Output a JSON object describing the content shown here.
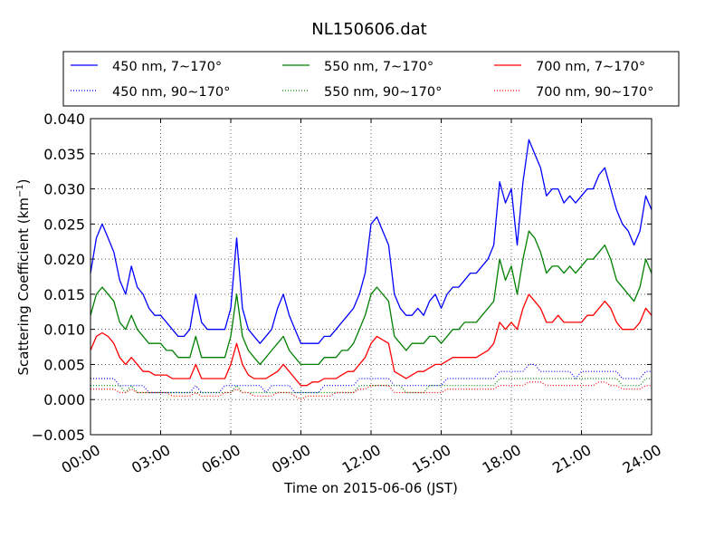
{
  "chart_data": {
    "type": "line",
    "title": "NL150606.dat",
    "xlabel": "Time on 2015-06-06 (JST)",
    "ylabel_prefix": "Scattering Coefficient (km",
    "ylabel_sup": "−1",
    "ylabel_suffix": ")",
    "xlim": [
      0,
      24
    ],
    "ylim": [
      -0.005,
      0.04
    ],
    "x_ticks": [
      {
        "v": 0,
        "label": "00:00"
      },
      {
        "v": 3,
        "label": "03:00"
      },
      {
        "v": 6,
        "label": "06:00"
      },
      {
        "v": 9,
        "label": "09:00"
      },
      {
        "v": 12,
        "label": "12:00"
      },
      {
        "v": 15,
        "label": "15:00"
      },
      {
        "v": 18,
        "label": "18:00"
      },
      {
        "v": 21,
        "label": "21:00"
      },
      {
        "v": 24,
        "label": "24:00"
      }
    ],
    "y_ticks": [
      {
        "v": -0.005,
        "label": "−0.005"
      },
      {
        "v": 0.0,
        "label": "0.000"
      },
      {
        "v": 0.005,
        "label": "0.005"
      },
      {
        "v": 0.01,
        "label": "0.010"
      },
      {
        "v": 0.015,
        "label": "0.015"
      },
      {
        "v": 0.02,
        "label": "0.020"
      },
      {
        "v": 0.025,
        "label": "0.025"
      },
      {
        "v": 0.03,
        "label": "0.030"
      },
      {
        "v": 0.035,
        "label": "0.035"
      },
      {
        "v": 0.04,
        "label": "0.040"
      }
    ],
    "grid": true,
    "legend_position": "top",
    "x": [
      0.0,
      0.25,
      0.5,
      0.75,
      1.0,
      1.25,
      1.5,
      1.75,
      2.0,
      2.25,
      2.5,
      2.75,
      3.0,
      3.25,
      3.5,
      3.75,
      4.0,
      4.25,
      4.5,
      4.75,
      5.0,
      5.25,
      5.5,
      5.75,
      6.0,
      6.25,
      6.5,
      6.75,
      7.0,
      7.25,
      7.5,
      7.75,
      8.0,
      8.25,
      8.5,
      8.75,
      9.0,
      9.25,
      9.5,
      9.75,
      10.0,
      10.25,
      10.5,
      10.75,
      11.0,
      11.25,
      11.5,
      11.75,
      12.0,
      12.25,
      12.5,
      12.75,
      13.0,
      13.25,
      13.5,
      13.75,
      14.0,
      14.25,
      14.5,
      14.75,
      15.0,
      15.25,
      15.5,
      15.75,
      16.0,
      16.25,
      16.5,
      16.75,
      17.0,
      17.25,
      17.5,
      17.75,
      18.0,
      18.25,
      18.5,
      18.75,
      19.0,
      19.25,
      19.5,
      19.75,
      20.0,
      20.25,
      20.5,
      20.75,
      21.0,
      21.25,
      21.5,
      21.75,
      22.0,
      22.25,
      22.5,
      22.75,
      23.0,
      23.25,
      23.5,
      23.75,
      24.0
    ],
    "series": [
      {
        "name": "450 nm, 7∼170°",
        "color": "#0000ff",
        "style": "solid",
        "values": [
          0.018,
          0.023,
          0.025,
          0.023,
          0.021,
          0.017,
          0.015,
          0.019,
          0.016,
          0.015,
          0.013,
          0.012,
          0.012,
          0.011,
          0.01,
          0.009,
          0.009,
          0.01,
          0.015,
          0.011,
          0.01,
          0.01,
          0.01,
          0.01,
          0.013,
          0.023,
          0.013,
          0.01,
          0.009,
          0.008,
          0.009,
          0.01,
          0.013,
          0.015,
          0.012,
          0.01,
          0.008,
          0.008,
          0.008,
          0.008,
          0.009,
          0.009,
          0.01,
          0.011,
          0.012,
          0.013,
          0.015,
          0.018,
          0.025,
          0.026,
          0.024,
          0.022,
          0.015,
          0.013,
          0.012,
          0.012,
          0.013,
          0.012,
          0.014,
          0.015,
          0.013,
          0.015,
          0.016,
          0.016,
          0.017,
          0.018,
          0.018,
          0.019,
          0.02,
          0.022,
          0.031,
          0.028,
          0.03,
          0.022,
          0.031,
          0.037,
          0.035,
          0.033,
          0.029,
          0.03,
          0.03,
          0.028,
          0.029,
          0.028,
          0.029,
          0.03,
          0.03,
          0.032,
          0.033,
          0.03,
          0.027,
          0.025,
          0.024,
          0.022,
          0.024,
          0.029,
          0.027
        ]
      },
      {
        "name": "450 nm, 90∼170°",
        "color": "#0000ff",
        "style": "dotted",
        "values": [
          0.003,
          0.003,
          0.003,
          0.003,
          0.003,
          0.002,
          0.002,
          0.002,
          0.002,
          0.002,
          0.001,
          0.001,
          0.001,
          0.001,
          0.001,
          0.001,
          0.001,
          0.001,
          0.002,
          0.001,
          0.001,
          0.001,
          0.001,
          0.002,
          0.002,
          0.002,
          0.002,
          0.002,
          0.002,
          0.002,
          0.001,
          0.002,
          0.002,
          0.002,
          0.002,
          0.001,
          0.001,
          0.001,
          0.001,
          0.001,
          0.002,
          0.002,
          0.002,
          0.002,
          0.002,
          0.002,
          0.003,
          0.003,
          0.003,
          0.003,
          0.003,
          0.003,
          0.002,
          0.002,
          0.002,
          0.002,
          0.002,
          0.002,
          0.002,
          0.002,
          0.002,
          0.003,
          0.003,
          0.003,
          0.003,
          0.003,
          0.003,
          0.003,
          0.003,
          0.003,
          0.004,
          0.004,
          0.004,
          0.004,
          0.004,
          0.005,
          0.005,
          0.004,
          0.004,
          0.004,
          0.004,
          0.004,
          0.004,
          0.003,
          0.004,
          0.004,
          0.004,
          0.004,
          0.004,
          0.004,
          0.004,
          0.003,
          0.003,
          0.003,
          0.003,
          0.004,
          0.004
        ]
      },
      {
        "name": "550 nm, 7∼170°",
        "color": "#008000",
        "style": "solid",
        "values": [
          0.012,
          0.015,
          0.016,
          0.015,
          0.014,
          0.011,
          0.01,
          0.012,
          0.01,
          0.009,
          0.008,
          0.008,
          0.008,
          0.007,
          0.007,
          0.006,
          0.006,
          0.006,
          0.009,
          0.006,
          0.006,
          0.006,
          0.006,
          0.006,
          0.009,
          0.015,
          0.009,
          0.007,
          0.006,
          0.005,
          0.006,
          0.007,
          0.008,
          0.009,
          0.007,
          0.006,
          0.005,
          0.005,
          0.005,
          0.005,
          0.006,
          0.006,
          0.006,
          0.007,
          0.007,
          0.008,
          0.01,
          0.012,
          0.015,
          0.016,
          0.015,
          0.014,
          0.009,
          0.008,
          0.007,
          0.008,
          0.008,
          0.008,
          0.009,
          0.009,
          0.008,
          0.009,
          0.01,
          0.01,
          0.011,
          0.011,
          0.011,
          0.012,
          0.013,
          0.014,
          0.02,
          0.017,
          0.019,
          0.015,
          0.02,
          0.024,
          0.023,
          0.021,
          0.018,
          0.019,
          0.019,
          0.018,
          0.019,
          0.018,
          0.019,
          0.02,
          0.02,
          0.021,
          0.022,
          0.02,
          0.017,
          0.016,
          0.015,
          0.014,
          0.016,
          0.02,
          0.018
        ]
      },
      {
        "name": "550 nm, 90∼170°",
        "color": "#008000",
        "style": "dotted",
        "values": [
          0.002,
          0.002,
          0.002,
          0.002,
          0.002,
          0.002,
          0.001,
          0.002,
          0.001,
          0.001,
          0.001,
          0.001,
          0.001,
          0.001,
          0.001,
          0.001,
          0.001,
          0.001,
          0.001,
          0.001,
          0.001,
          0.001,
          0.001,
          0.001,
          0.001,
          0.002,
          0.001,
          0.001,
          0.001,
          0.001,
          0.001,
          0.001,
          0.001,
          0.001,
          0.001,
          0.001,
          0.001,
          0.001,
          0.001,
          0.001,
          0.001,
          0.001,
          0.001,
          0.001,
          0.001,
          0.001,
          0.002,
          0.002,
          0.002,
          0.002,
          0.002,
          0.002,
          0.002,
          0.002,
          0.001,
          0.001,
          0.001,
          0.001,
          0.002,
          0.002,
          0.002,
          0.002,
          0.002,
          0.002,
          0.002,
          0.002,
          0.002,
          0.002,
          0.002,
          0.002,
          0.003,
          0.003,
          0.003,
          0.003,
          0.003,
          0.003,
          0.003,
          0.003,
          0.003,
          0.003,
          0.003,
          0.003,
          0.003,
          0.003,
          0.003,
          0.003,
          0.003,
          0.003,
          0.003,
          0.003,
          0.003,
          0.002,
          0.002,
          0.002,
          0.002,
          0.003,
          0.003
        ]
      },
      {
        "name": "700 nm, 7∼170°",
        "color": "#ff0000",
        "style": "solid",
        "values": [
          0.007,
          0.009,
          0.0095,
          0.009,
          0.008,
          0.006,
          0.005,
          0.006,
          0.005,
          0.004,
          0.004,
          0.0035,
          0.0035,
          0.0035,
          0.003,
          0.003,
          0.003,
          0.003,
          0.005,
          0.003,
          0.003,
          0.003,
          0.003,
          0.003,
          0.005,
          0.008,
          0.005,
          0.0035,
          0.003,
          0.003,
          0.003,
          0.0035,
          0.004,
          0.005,
          0.004,
          0.003,
          0.002,
          0.002,
          0.0025,
          0.0025,
          0.003,
          0.003,
          0.003,
          0.0035,
          0.004,
          0.004,
          0.005,
          0.006,
          0.008,
          0.009,
          0.0085,
          0.008,
          0.004,
          0.0035,
          0.003,
          0.0035,
          0.004,
          0.004,
          0.0045,
          0.005,
          0.005,
          0.0055,
          0.006,
          0.006,
          0.006,
          0.006,
          0.006,
          0.0065,
          0.007,
          0.008,
          0.011,
          0.01,
          0.011,
          0.01,
          0.013,
          0.015,
          0.014,
          0.013,
          0.011,
          0.011,
          0.012,
          0.011,
          0.011,
          0.011,
          0.011,
          0.012,
          0.012,
          0.013,
          0.014,
          0.013,
          0.011,
          0.01,
          0.01,
          0.01,
          0.011,
          0.013,
          0.012
        ]
      },
      {
        "name": "700 nm, 90∼170°",
        "color": "#ff0000",
        "style": "dotted",
        "values": [
          0.0015,
          0.0015,
          0.0015,
          0.0015,
          0.0015,
          0.001,
          0.001,
          0.0015,
          0.001,
          0.001,
          0.001,
          0.001,
          0.001,
          0.001,
          0.0005,
          0.0005,
          0.0005,
          0.0005,
          0.001,
          0.0005,
          0.0005,
          0.0005,
          0.0005,
          0.001,
          0.001,
          0.0015,
          0.001,
          0.001,
          0.0005,
          0.0005,
          0.0005,
          0.0005,
          0.001,
          0.001,
          0.001,
          0.0005,
          0.0,
          0.0005,
          0.0005,
          0.0005,
          0.0005,
          0.0005,
          0.001,
          0.001,
          0.001,
          0.001,
          0.0015,
          0.0015,
          0.002,
          0.002,
          0.002,
          0.002,
          0.001,
          0.001,
          0.001,
          0.001,
          0.001,
          0.001,
          0.001,
          0.001,
          0.001,
          0.0015,
          0.0015,
          0.0015,
          0.0015,
          0.0015,
          0.0015,
          0.0015,
          0.0015,
          0.0015,
          0.002,
          0.002,
          0.002,
          0.002,
          0.002,
          0.0025,
          0.0025,
          0.0025,
          0.002,
          0.002,
          0.002,
          0.002,
          0.002,
          0.002,
          0.002,
          0.002,
          0.002,
          0.0025,
          0.0025,
          0.002,
          0.002,
          0.0015,
          0.0015,
          0.0015,
          0.0015,
          0.002,
          0.002
        ]
      }
    ]
  }
}
